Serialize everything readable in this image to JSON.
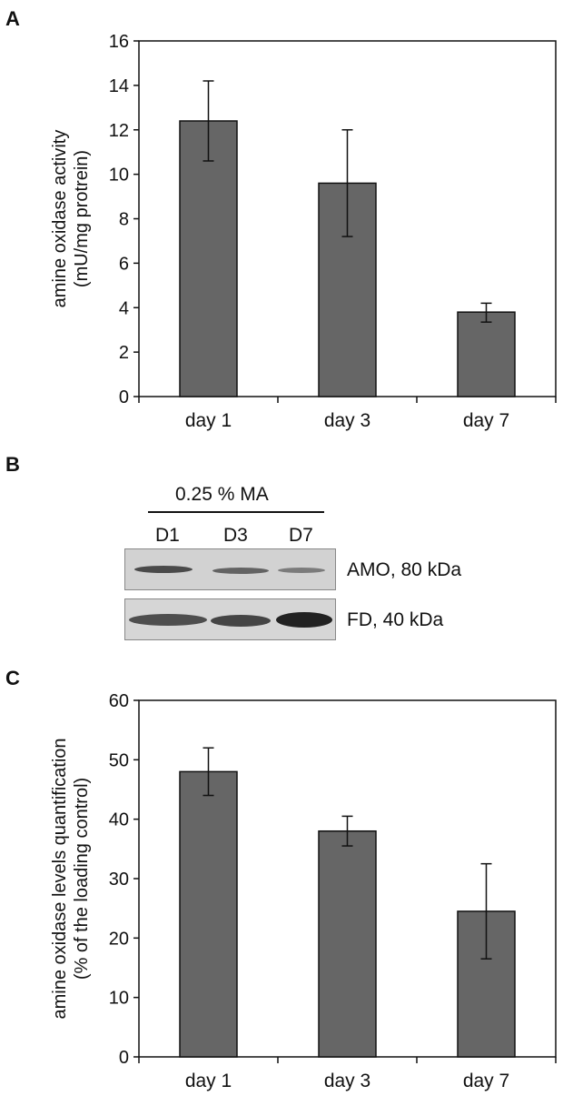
{
  "panels": {
    "a": "A",
    "b": "B",
    "c": "C"
  },
  "chart_data": [
    {
      "type": "bar",
      "categories": [
        "day 1",
        "day 3",
        "day 7"
      ],
      "values": [
        12.4,
        9.6,
        3.8
      ],
      "error_high": [
        14.2,
        12.0,
        4.2
      ],
      "error_low": [
        10.6,
        7.2,
        3.35
      ],
      "ylabel": [
        "amine oxidase activity",
        "(mU/mg protrein)"
      ],
      "ylim": [
        0,
        16
      ],
      "yticks": [
        0,
        2,
        4,
        6,
        8,
        10,
        12,
        14,
        16
      ],
      "grid": false,
      "bar_color": "#666666"
    },
    {
      "type": "bar",
      "categories": [
        "day 1",
        "day 3",
        "day 7"
      ],
      "values": [
        48.0,
        38.0,
        24.5
      ],
      "error_high": [
        52.0,
        40.5,
        32.5
      ],
      "error_low": [
        44.0,
        35.5,
        16.5
      ],
      "ylabel": [
        "amine oxidase levels quantification",
        "(% of the loading control)"
      ],
      "ylim": [
        0,
        60
      ],
      "yticks": [
        0,
        10,
        20,
        30,
        40,
        50,
        60
      ],
      "grid": false,
      "bar_color": "#666666"
    }
  ],
  "blot": {
    "treatment": "0.25 % MA",
    "lanes": [
      "D1",
      "D3",
      "D7"
    ],
    "rows": [
      {
        "label": "AMO, 80 kDa",
        "intensities": [
          0.85,
          0.7,
          0.55
        ]
      },
      {
        "label": "FD, 40 kDa",
        "intensities": [
          0.85,
          0.85,
          1.0
        ]
      }
    ]
  }
}
